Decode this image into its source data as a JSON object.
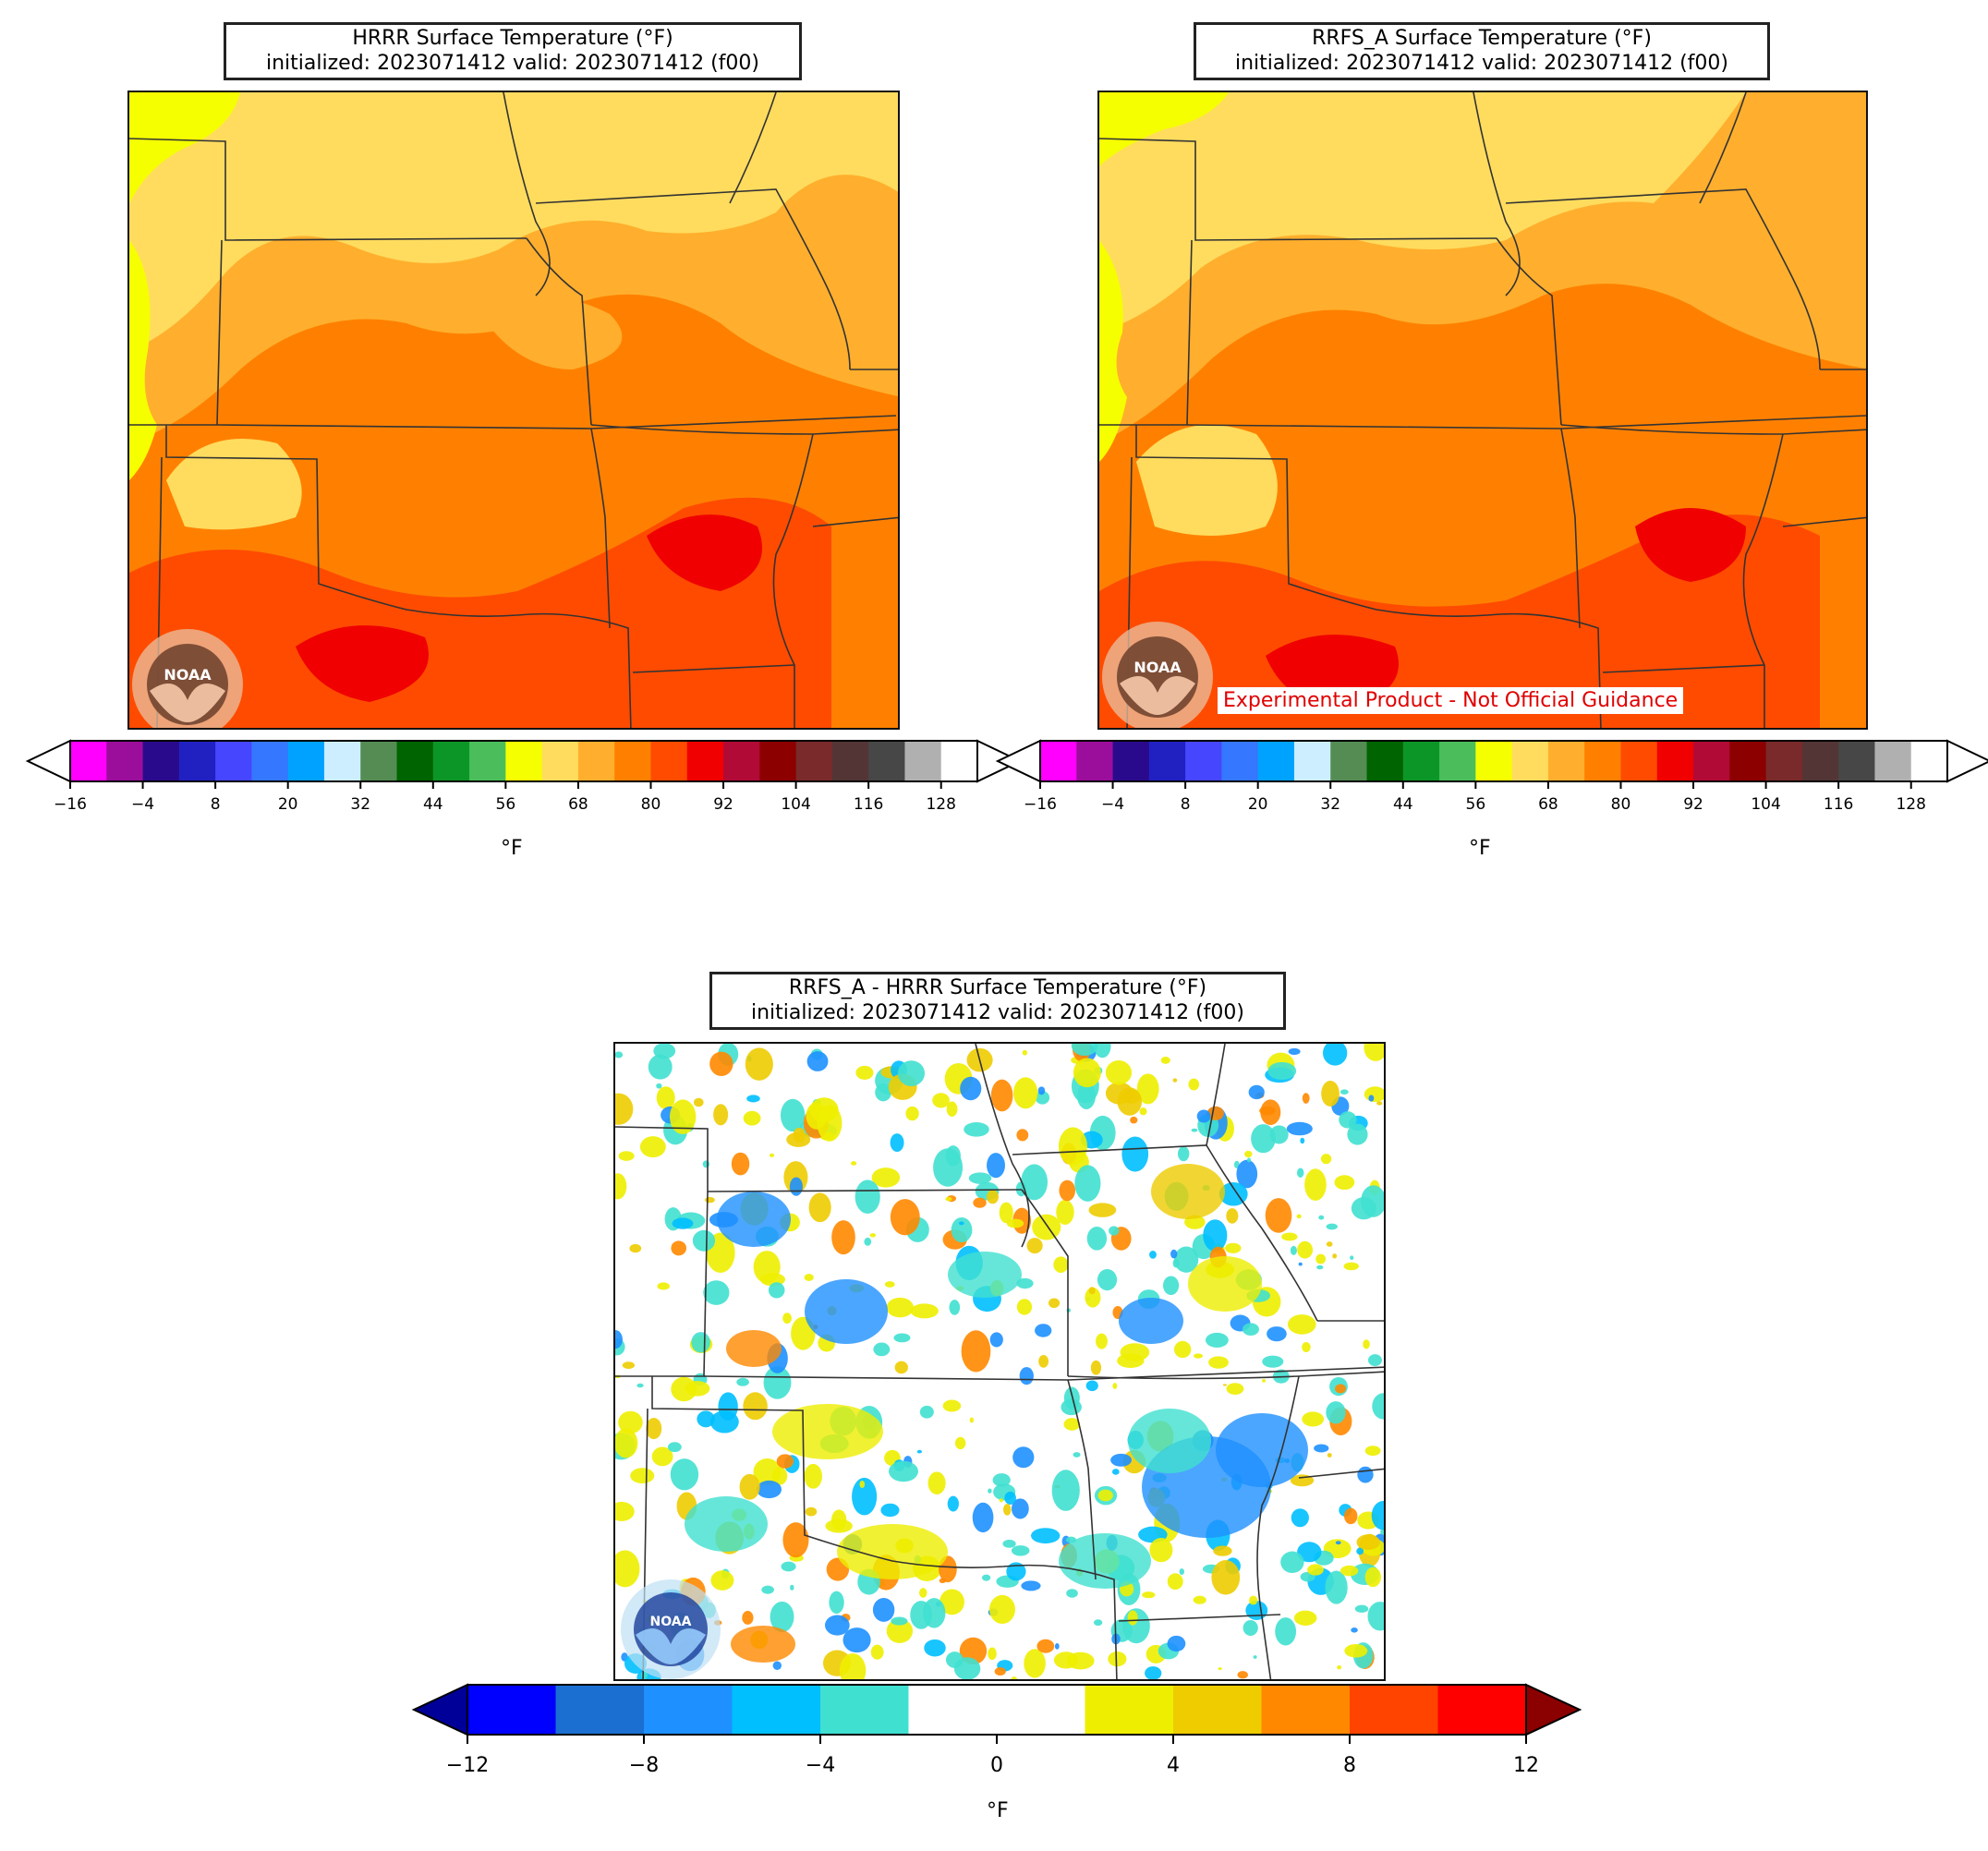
{
  "panels": {
    "hrrr": {
      "title_line1": "HRRR Surface Temperature (°F)",
      "title_line2": "initialized: 2023071412 valid: 2023071412 (f00)"
    },
    "rrfs": {
      "title_line1": "RRFS_A Surface Temperature (°F)",
      "title_line2": "initialized: 2023071412 valid: 2023071412 (f00)",
      "disclaimer": "Experimental Product - Not Official Guidance"
    },
    "diff": {
      "title_line1": "RRFS_A - HRRR Surface Temperature (°F)",
      "title_line2": "initialized: 2023071412 valid: 2023071412 (f00)"
    }
  },
  "logo": {
    "icon": "noaa-logo",
    "text": "NOAA"
  },
  "temp_colorbar": {
    "unit": "°F",
    "ticks": [
      "−16",
      "−4",
      "8",
      "20",
      "32",
      "44",
      "56",
      "68",
      "80",
      "92",
      "104",
      "116",
      "128"
    ],
    "colors": [
      "#ff00ff",
      "#9b0e9b",
      "#2a0a8c",
      "#2121c2",
      "#4646ff",
      "#3577ff",
      "#00a2ff",
      "#cceeff",
      "#548c54",
      "#006400",
      "#0d9628",
      "#4bbe5b",
      "#f5ff00",
      "#ffdc5e",
      "#ffaf2d",
      "#ff8000",
      "#ff4b00",
      "#f00000",
      "#b20a36",
      "#8c0000",
      "#7a2a2a",
      "#533535",
      "#474747",
      "#b0b0b0",
      "#ffffff"
    ]
  },
  "diff_colorbar": {
    "unit": "°F",
    "ticks": [
      "−12",
      "−8",
      "−4",
      "0",
      "4",
      "8",
      "12"
    ],
    "under_color": "#000099",
    "over_color": "#8b0000",
    "colors": [
      "#0000ff",
      "#1a6fd0",
      "#1e90ff",
      "#00bfff",
      "#40e0d0",
      "#ffffff",
      "#ffffff",
      "#eeee00",
      "#eecc00",
      "#ff8800",
      "#ff4400",
      "#ff0000"
    ]
  },
  "temp_colors": {
    "pale_yellow": "#ffdc5e",
    "yellow": "#f5ff00",
    "light_orange": "#ffaf2d",
    "orange": "#ff8000",
    "red_orange": "#ff4b00",
    "red": "#f00000"
  }
}
